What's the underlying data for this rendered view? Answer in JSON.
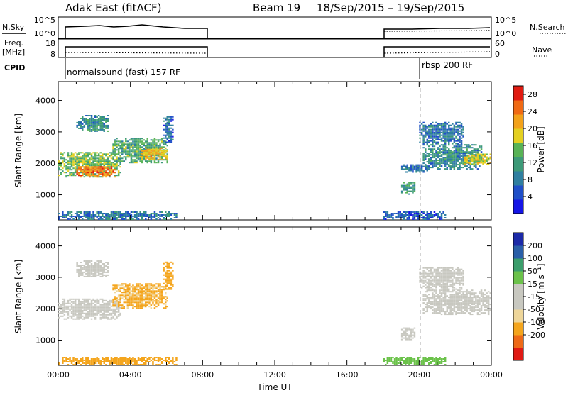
{
  "header": {
    "title": "Adak East (fitACF)",
    "beam": "Beam 19",
    "date_range": "18/Sep/2015 – 19/Sep/2015"
  },
  "labels": {
    "nsky": "N.Sky",
    "nsearch": "N.Search",
    "freq_line1": "Freq.",
    "freq_line2": "[MHz]",
    "nave": "Nave",
    "cpid": "CPID",
    "time_axis": "Time UT",
    "slant_range": "Slant Range [km]",
    "power": "Power [dB]",
    "velocity": "Velocity [m s⁻¹]"
  },
  "noise_panel": {
    "left_ticks": [
      "10^5",
      "10^0"
    ],
    "right_ticks": [
      "10^5",
      "10^0"
    ]
  },
  "freq_panel": {
    "left_ticks": [
      "18",
      "8"
    ],
    "right_ticks": [
      "60",
      "0"
    ]
  },
  "cpid_segments": [
    {
      "label": "normalsound (fast) 157 RF",
      "start_hour": 0
    },
    {
      "label": "rbsp 200 RF",
      "start_hour": 20
    }
  ],
  "colors": {
    "power_scale": [
      "#1515e6",
      "#204fc8",
      "#2f7fa0",
      "#3d9a78",
      "#58b356",
      "#e4d020",
      "#f3a21a",
      "#f06a14",
      "#e01c12"
    ],
    "velocity_scale": [
      "#e01a14",
      "#ee6a18",
      "#f4a51d",
      "#eed69a",
      "#c8c8c0",
      "#c8c8c0",
      "#6bc24a",
      "#3b9e6c",
      "#2a5fa8",
      "#1c2aa8"
    ],
    "ground_scatter": "#c8c8c0"
  },
  "chart_data": [
    {
      "type": "heatmap",
      "title": "Power",
      "xlabel": "Time UT",
      "ylabel": "Slant Range [km]",
      "x_ticks": [
        "00:00",
        "04:00",
        "08:00",
        "12:00",
        "16:00",
        "20:00",
        "00:00"
      ],
      "xlim_hours": [
        0,
        24
      ],
      "y_ticks": [
        1000,
        2000,
        3000,
        4000
      ],
      "ylim": [
        200,
        4600
      ],
      "colorbar_label": "Power [dB]",
      "colorbar_ticks": [
        4,
        8,
        12,
        16,
        20,
        24,
        28
      ],
      "colorbar_range": [
        0,
        30
      ],
      "data_gaps_hours": [
        [
          8,
          18
        ]
      ],
      "echo_regions": [
        {
          "t0": 0.0,
          "t1": 3.5,
          "r0": 1550,
          "r1": 2350,
          "value": 15
        },
        {
          "t0": 1.0,
          "t1": 3.2,
          "r0": 1550,
          "r1": 1900,
          "value": 24
        },
        {
          "t0": 3.0,
          "t1": 6.0,
          "r0": 2000,
          "r1": 2800,
          "value": 13
        },
        {
          "t0": 4.5,
          "t1": 6.0,
          "r0": 2100,
          "r1": 2500,
          "value": 20
        },
        {
          "t0": 5.8,
          "t1": 6.3,
          "r0": 2600,
          "r1": 3500,
          "value": 7
        },
        {
          "t0": 1.0,
          "t1": 2.8,
          "r0": 3000,
          "r1": 3500,
          "value": 10
        },
        {
          "t0": 19.0,
          "t1": 19.8,
          "r0": 1000,
          "r1": 1400,
          "value": 12
        },
        {
          "t0": 19.0,
          "t1": 20.5,
          "r0": 1700,
          "r1": 1950,
          "value": 8
        },
        {
          "t0": 20.2,
          "t1": 23.5,
          "r0": 1800,
          "r1": 2600,
          "value": 10
        },
        {
          "t0": 22.5,
          "t1": 24.0,
          "r0": 1950,
          "r1": 2300,
          "value": 18
        },
        {
          "t0": 20.0,
          "t1": 22.5,
          "r0": 2600,
          "r1": 3300,
          "value": 8
        },
        {
          "t0": 18.0,
          "t1": 21.5,
          "r0": 200,
          "r1": 450,
          "value": 6
        },
        {
          "t0": 0.0,
          "t1": 6.5,
          "r0": 200,
          "r1": 450,
          "value": 8
        }
      ]
    },
    {
      "type": "heatmap",
      "title": "Velocity",
      "xlabel": "Time UT",
      "ylabel": "Slant Range [km]",
      "x_ticks": [
        "00:00",
        "04:00",
        "08:00",
        "12:00",
        "16:00",
        "20:00",
        "00:00"
      ],
      "xlim_hours": [
        0,
        24
      ],
      "y_ticks": [
        1000,
        2000,
        3000,
        4000
      ],
      "ylim": [
        200,
        4600
      ],
      "colorbar_label": "Velocity [m s⁻¹]",
      "colorbar_ticks": [
        200,
        100,
        50,
        15,
        -15,
        -50,
        -100,
        -200
      ],
      "colorbar_range": [
        -250,
        250
      ],
      "data_gaps_hours": [
        [
          8,
          18
        ]
      ],
      "echo_regions": [
        {
          "t0": 0.0,
          "t1": 3.5,
          "r0": 1650,
          "r1": 2300,
          "value": 0
        },
        {
          "t0": 3.0,
          "t1": 6.0,
          "r0": 2000,
          "r1": 2800,
          "value": -40
        },
        {
          "t0": 5.8,
          "t1": 6.3,
          "r0": 2600,
          "r1": 3500,
          "value": -60
        },
        {
          "t0": 1.0,
          "t1": 2.8,
          "r0": 3000,
          "r1": 3500,
          "value": 0
        },
        {
          "t0": 19.0,
          "t1": 19.8,
          "r0": 1000,
          "r1": 1400,
          "value": 0
        },
        {
          "t0": 20.2,
          "t1": 24.0,
          "r0": 1800,
          "r1": 2600,
          "value": 0
        },
        {
          "t0": 20.0,
          "t1": 22.5,
          "r0": 2600,
          "r1": 3300,
          "value": 0
        },
        {
          "t0": 18.0,
          "t1": 21.5,
          "r0": 200,
          "r1": 450,
          "value": 40
        },
        {
          "t0": 0.0,
          "t1": 6.5,
          "r0": 200,
          "r1": 450,
          "value": -60
        }
      ]
    }
  ]
}
